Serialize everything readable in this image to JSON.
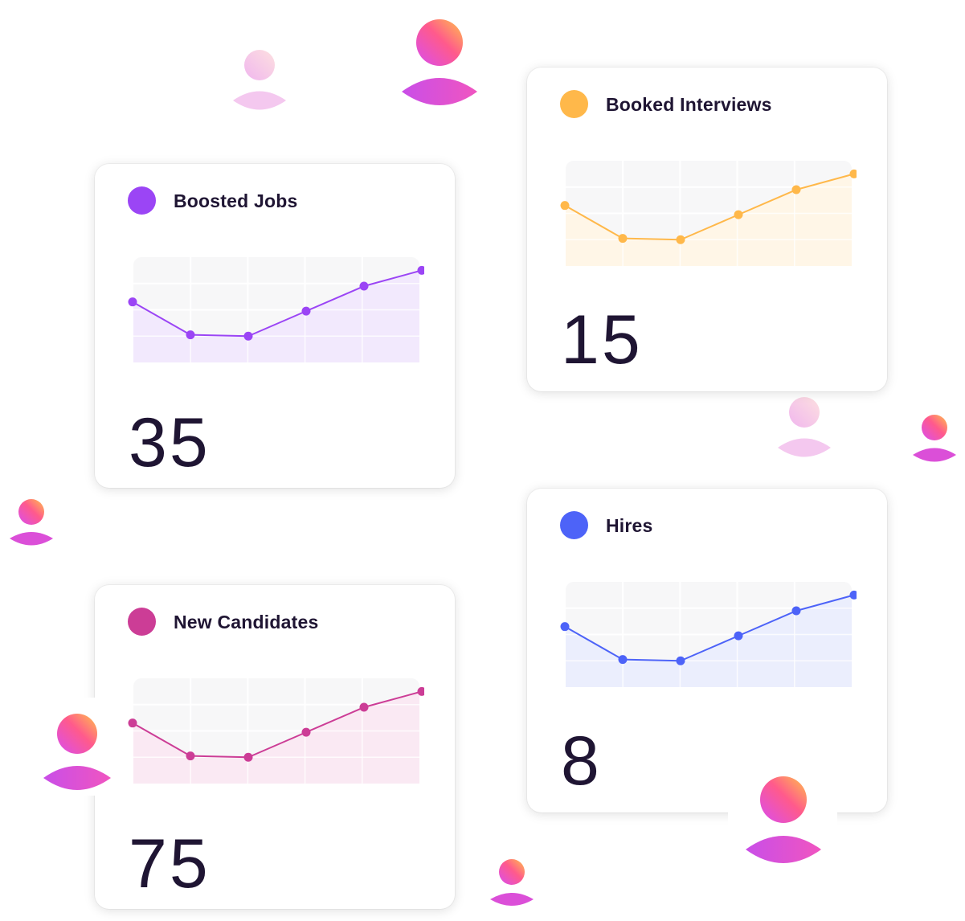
{
  "cards": [
    {
      "title": "Boosted Jobs",
      "value": "35",
      "color": "#9b45f5",
      "fill": "#f1e8fd"
    },
    {
      "title": "Booked Interviews",
      "value": "15",
      "color": "#ffb84a",
      "fill": "#fff6e6"
    },
    {
      "title": "New Candidates",
      "value": "75",
      "color": "#cc3d96",
      "fill": "#fae8f2"
    },
    {
      "title": "Hires",
      "value": "8",
      "color": "#4d63f8",
      "fill": "#eaedfd"
    }
  ],
  "chart_data": [
    {
      "type": "area",
      "title": "Boosted Jobs",
      "x": [
        1,
        2,
        3,
        4,
        5,
        6
      ],
      "values": [
        4.6,
        2.1,
        2.0,
        3.9,
        5.8,
        7.0
      ],
      "ylim": [
        0,
        8
      ],
      "grid": true,
      "color": "#9b45f5"
    },
    {
      "type": "area",
      "title": "Booked Interviews",
      "x": [
        1,
        2,
        3,
        4,
        5,
        6
      ],
      "values": [
        4.6,
        2.1,
        2.0,
        3.9,
        5.8,
        7.0
      ],
      "ylim": [
        0,
        8
      ],
      "grid": true,
      "color": "#ffb84a"
    },
    {
      "type": "area",
      "title": "New Candidates",
      "x": [
        1,
        2,
        3,
        4,
        5,
        6
      ],
      "values": [
        4.6,
        2.1,
        2.0,
        3.9,
        5.8,
        7.0
      ],
      "ylim": [
        0,
        8
      ],
      "grid": true,
      "color": "#cc3d96"
    },
    {
      "type": "area",
      "title": "Hires",
      "x": [
        1,
        2,
        3,
        4,
        5,
        6
      ],
      "values": [
        4.6,
        2.1,
        2.0,
        3.9,
        5.8,
        7.0
      ],
      "ylim": [
        0,
        8
      ],
      "grid": true,
      "color": "#4d63f8"
    }
  ],
  "decor": {
    "avatar_icon": "user-icon",
    "avatar_gradient": [
      "#d94df0",
      "#ff5a8c",
      "#ffc24a"
    ],
    "avatar_faded_gradient": [
      "#f3c6ee",
      "#fde0e0"
    ]
  }
}
